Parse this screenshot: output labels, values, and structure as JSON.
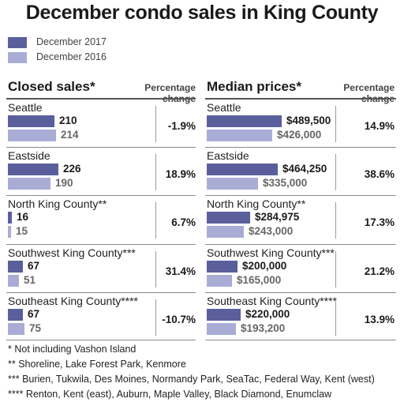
{
  "title": "December condo sales in King County",
  "legend": [
    {
      "label": "December 2017",
      "color": "#5a5f9c"
    },
    {
      "label": "December 2016",
      "color": "#a9add6"
    }
  ],
  "headings": {
    "closed_sales": "Closed sales*",
    "median_prices": "Median prices*",
    "percentage_change": "Percentage change"
  },
  "chart_data": [
    {
      "type": "bar",
      "title": "Closed sales*",
      "categories": [
        "Seattle",
        "Eastside",
        "North King County**",
        "Southwest King County***",
        "Southeast King County****"
      ],
      "series": [
        {
          "name": "December 2017",
          "values": [
            210,
            226,
            16,
            67,
            67
          ],
          "labels": [
            "210",
            "226",
            "16",
            "67",
            "67"
          ]
        },
        {
          "name": "December 2016",
          "values": [
            214,
            190,
            15,
            51,
            75
          ],
          "labels": [
            "214",
            "190",
            "15",
            "51",
            "75"
          ]
        }
      ],
      "percentage_change": [
        "-1.9%",
        "18.9%",
        "6.7%",
        "31.4%",
        "-10.7%"
      ],
      "xlim": [
        0,
        226
      ]
    },
    {
      "type": "bar",
      "title": "Median prices*",
      "categories": [
        "Seattle",
        "Eastside",
        "North King County**",
        "Southwest King County***",
        "Southeast King County****"
      ],
      "series": [
        {
          "name": "December 2017",
          "values": [
            489500,
            464250,
            284975,
            200000,
            220000
          ],
          "labels": [
            "$489,500",
            "$464,250",
            "$284,975",
            "$200,000",
            "$220,000"
          ]
        },
        {
          "name": "December 2016",
          "values": [
            426000,
            335000,
            243000,
            165000,
            193200
          ],
          "labels": [
            "$426,000",
            "$335,000",
            "$243,000",
            "$165,000",
            "$193,200"
          ]
        }
      ],
      "percentage_change": [
        "14.9%",
        "38.6%",
        "17.3%",
        "21.2%",
        "13.9%"
      ],
      "xlim": [
        0,
        489500
      ]
    }
  ],
  "footnotes": [
    "* Not including Vashon Island",
    "** Shoreline, Lake Forest Park, Kenmore",
    "*** Burien, Tukwila, Des Moines, Normandy Park, SeaTac, Federal Way, Kent (west)",
    "**** Renton, Kent (east), Auburn, Maple Valley, Black Diamond, Enumclaw"
  ]
}
